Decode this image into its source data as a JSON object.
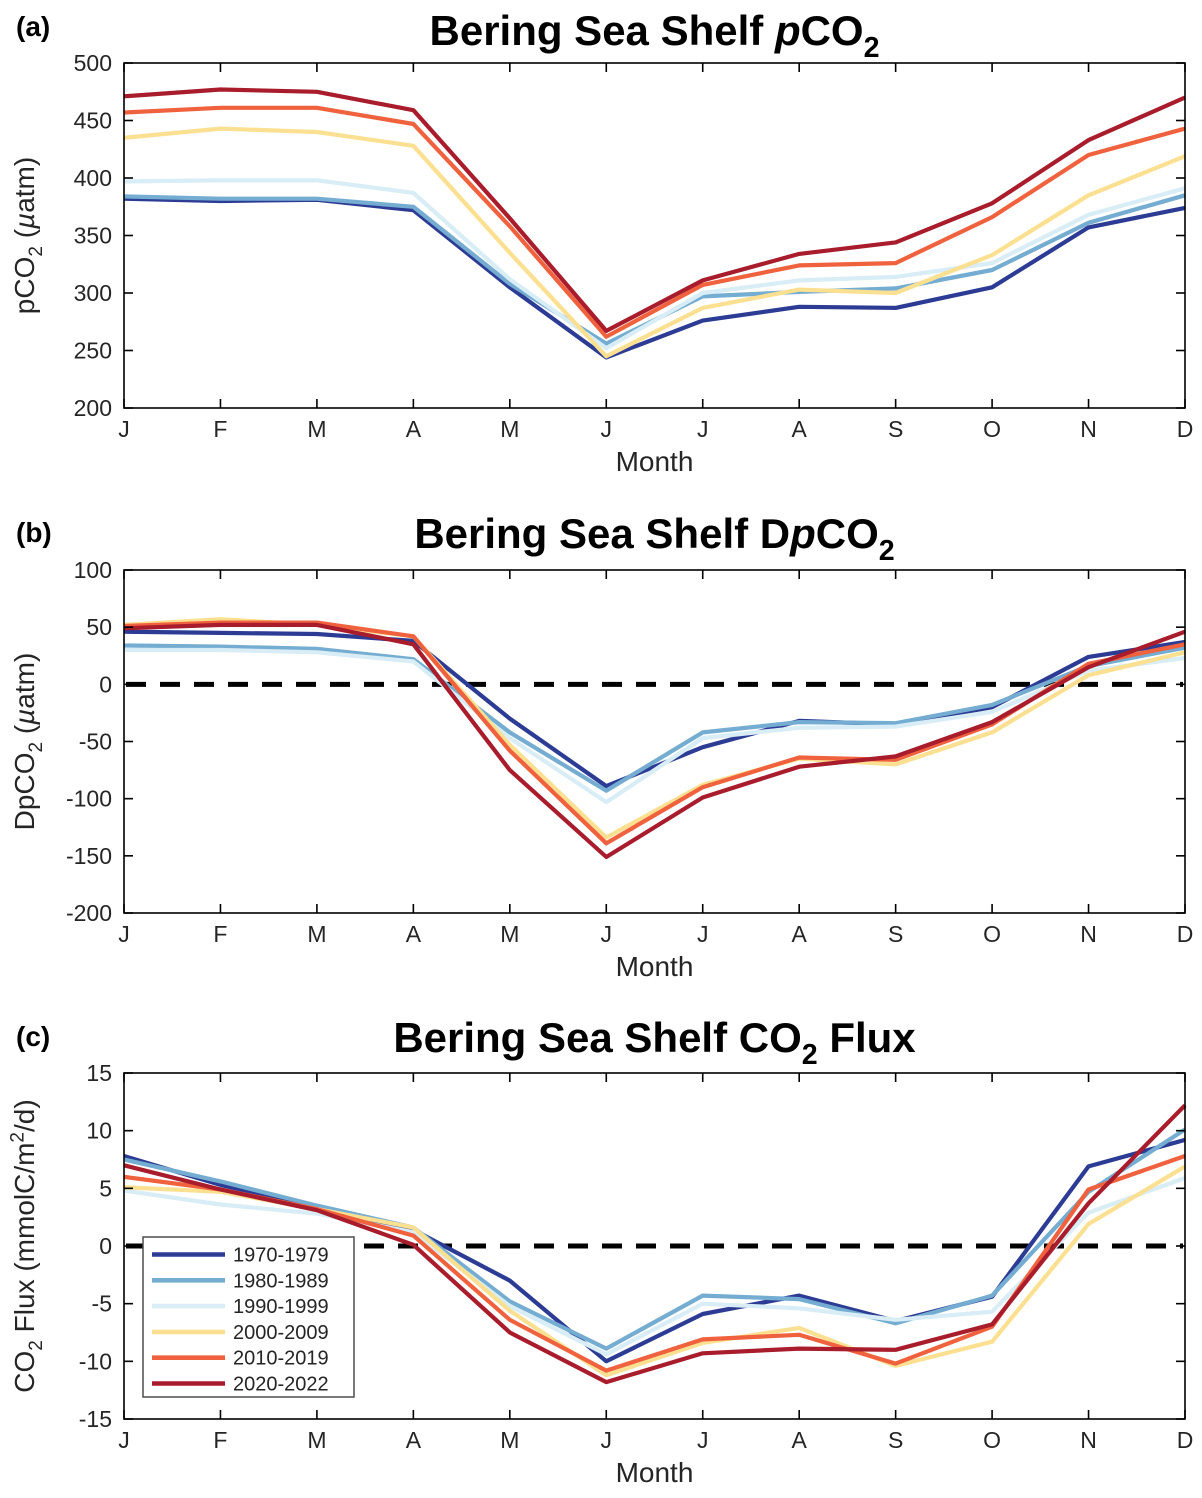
{
  "figure": {
    "panel_letters": [
      "(a)",
      "(b)",
      "(c)"
    ],
    "background": "#ffffff",
    "axis_color": "#000000",
    "zero_line_color": "#000000"
  },
  "chart_data": [
    {
      "type": "line",
      "panel_label": "(a)",
      "title_plain": "Bering Sea Shelf pCO2",
      "title_parts": [
        {
          "t": "Bering Sea Shelf "
        },
        {
          "t": "p",
          "style": "italic"
        },
        {
          "t": "CO"
        },
        {
          "t": "2",
          "style": "sub"
        }
      ],
      "ylabel_plain": "pCO2 (µatm)",
      "ylabel_parts": [
        {
          "t": "pCO"
        },
        {
          "t": "2",
          "style": "sub"
        },
        {
          "t": " ("
        },
        {
          "t": "µ",
          "style": "italic"
        },
        {
          "t": "atm)"
        }
      ],
      "xlabel": "Month",
      "categories": [
        "J",
        "F",
        "M",
        "A",
        "M",
        "J",
        "J",
        "A",
        "S",
        "O",
        "N",
        "D"
      ],
      "ylim": [
        200,
        500
      ],
      "yticks": [
        200,
        250,
        300,
        350,
        400,
        450,
        500
      ],
      "zero_dashed_line": false,
      "grid": false,
      "legend": {
        "show": false,
        "position": null
      },
      "series": [
        {
          "name": "1970-1979",
          "color": "#2c3b94",
          "values": [
            382,
            380,
            381,
            372,
            305,
            244,
            276,
            288,
            287,
            305,
            357,
            374
          ]
        },
        {
          "name": "1980-1989",
          "color": "#74add1",
          "values": [
            384,
            382,
            382,
            375,
            308,
            256,
            297,
            301,
            304,
            320,
            361,
            385
          ]
        },
        {
          "name": "1990-1999",
          "color": "#d8edf6",
          "values": [
            397,
            398,
            398,
            387,
            312,
            252,
            300,
            311,
            314,
            326,
            368,
            391
          ]
        },
        {
          "name": "2000-2009",
          "color": "#fce091",
          "values": [
            435,
            443,
            440,
            428,
            335,
            245,
            287,
            303,
            300,
            333,
            385,
            419
          ]
        },
        {
          "name": "2010-2019",
          "color": "#f0613e",
          "values": [
            457,
            461,
            461,
            447,
            358,
            262,
            307,
            324,
            326,
            366,
            420,
            443
          ]
        },
        {
          "name": "2020-2022",
          "color": "#a81c2c",
          "values": [
            471,
            477,
            475,
            459,
            365,
            267,
            311,
            334,
            344,
            378,
            433,
            470
          ]
        }
      ]
    },
    {
      "type": "line",
      "panel_label": "(b)",
      "title_plain": "Bering Sea Shelf DpCO2",
      "title_parts": [
        {
          "t": "Bering Sea Shelf D"
        },
        {
          "t": "p",
          "style": "italic"
        },
        {
          "t": "CO"
        },
        {
          "t": "2",
          "style": "sub"
        }
      ],
      "ylabel_plain": "DpCO2 (µatm)",
      "ylabel_parts": [
        {
          "t": "DpCO"
        },
        {
          "t": "2",
          "style": "sub"
        },
        {
          "t": " ("
        },
        {
          "t": "µ",
          "style": "italic"
        },
        {
          "t": "atm)"
        }
      ],
      "xlabel": "Month",
      "categories": [
        "J",
        "F",
        "M",
        "A",
        "M",
        "J",
        "J",
        "A",
        "S",
        "O",
        "N",
        "D"
      ],
      "ylim": [
        -200,
        100
      ],
      "yticks": [
        -200,
        -150,
        -100,
        -50,
        0,
        50,
        100
      ],
      "zero_dashed_line": true,
      "grid": false,
      "legend": {
        "show": false,
        "position": null
      },
      "series": [
        {
          "name": "1970-1979",
          "color": "#2c3b94",
          "values": [
            46,
            45,
            44,
            38,
            -30,
            -89,
            -55,
            -32,
            -35,
            -20,
            24,
            37
          ]
        },
        {
          "name": "1980-1989",
          "color": "#74add1",
          "values": [
            34,
            33,
            31,
            22,
            -42,
            -93,
            -42,
            -33,
            -34,
            -18,
            16,
            32
          ]
        },
        {
          "name": "1990-1999",
          "color": "#d8edf6",
          "values": [
            30,
            30,
            28,
            20,
            -47,
            -103,
            -47,
            -38,
            -37,
            -24,
            12,
            23
          ]
        },
        {
          "name": "2000-2009",
          "color": "#fce091",
          "values": [
            52,
            57,
            52,
            42,
            -53,
            -134,
            -88,
            -65,
            -70,
            -42,
            8,
            28
          ]
        },
        {
          "name": "2010-2019",
          "color": "#f0613e",
          "values": [
            51,
            54,
            54,
            42,
            -58,
            -139,
            -90,
            -64,
            -66,
            -35,
            18,
            35
          ]
        },
        {
          "name": "2020-2022",
          "color": "#a81c2c",
          "values": [
            49,
            52,
            52,
            35,
            -75,
            -151,
            -99,
            -72,
            -63,
            -33,
            15,
            46
          ]
        }
      ]
    },
    {
      "type": "line",
      "panel_label": "(c)",
      "title_plain": "Bering Sea Shelf CO2 Flux",
      "title_parts": [
        {
          "t": "Bering Sea Shelf CO"
        },
        {
          "t": "2",
          "style": "sub"
        },
        {
          "t": " Flux"
        }
      ],
      "ylabel_plain": "CO2 Flux (mmolC/m2/d)",
      "ylabel_parts": [
        {
          "t": "CO"
        },
        {
          "t": "2",
          "style": "sub"
        },
        {
          "t": " Flux (mmolC/m"
        },
        {
          "t": "2",
          "style": "sup"
        },
        {
          "t": "/d)"
        }
      ],
      "xlabel": "Month",
      "categories": [
        "J",
        "F",
        "M",
        "A",
        "M",
        "J",
        "J",
        "A",
        "S",
        "O",
        "N",
        "D"
      ],
      "ylim": [
        -15,
        15
      ],
      "yticks": [
        -15,
        -10,
        -5,
        0,
        5,
        10,
        15
      ],
      "zero_dashed_line": true,
      "grid": false,
      "legend": {
        "show": true,
        "position": "lower-left"
      },
      "series": [
        {
          "name": "1970-1979",
          "color": "#2c3b94",
          "values": [
            7.8,
            5.3,
            3.4,
            1.4,
            -3.0,
            -10.0,
            -5.9,
            -4.3,
            -6.5,
            -4.4,
            6.9,
            9.2
          ]
        },
        {
          "name": "1980-1989",
          "color": "#74add1",
          "values": [
            7.5,
            5.6,
            3.5,
            1.6,
            -4.8,
            -8.9,
            -4.3,
            -4.6,
            -6.7,
            -4.3,
            4.7,
            10.1
          ]
        },
        {
          "name": "1990-1999",
          "color": "#d8edf6",
          "values": [
            4.8,
            3.6,
            2.8,
            1.2,
            -5.2,
            -9.4,
            -5.0,
            -5.4,
            -6.4,
            -5.7,
            2.9,
            5.9
          ]
        },
        {
          "name": "2000-2009",
          "color": "#fce091",
          "values": [
            5.1,
            4.7,
            3.2,
            1.6,
            -5.6,
            -11.2,
            -8.4,
            -7.1,
            -10.4,
            -8.3,
            1.9,
            6.9
          ]
        },
        {
          "name": "2010-2019",
          "color": "#f0613e",
          "values": [
            6.0,
            4.9,
            3.2,
            0.9,
            -6.4,
            -10.8,
            -8.1,
            -7.7,
            -10.2,
            -7.0,
            4.9,
            7.8
          ]
        },
        {
          "name": "2020-2022",
          "color": "#a81c2c",
          "values": [
            7.0,
            4.9,
            3.1,
            0.1,
            -7.5,
            -11.8,
            -9.3,
            -8.9,
            -9.0,
            -6.8,
            3.7,
            12.2
          ]
        }
      ]
    }
  ]
}
